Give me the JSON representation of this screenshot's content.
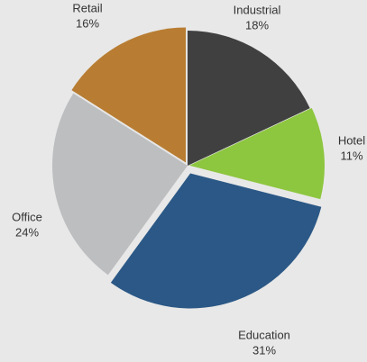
{
  "chart_data": {
    "type": "pie",
    "categories": [
      "Industrial",
      "Hotel",
      "Education",
      "Office",
      "Retail"
    ],
    "values": [
      18,
      11,
      31,
      24,
      16
    ],
    "value_labels": [
      "18%",
      "11%",
      "31%",
      "24%",
      "16%"
    ],
    "colors": [
      "#404040",
      "#8dc63f",
      "#2b5886",
      "#bcbec0",
      "#b87d32"
    ]
  }
}
